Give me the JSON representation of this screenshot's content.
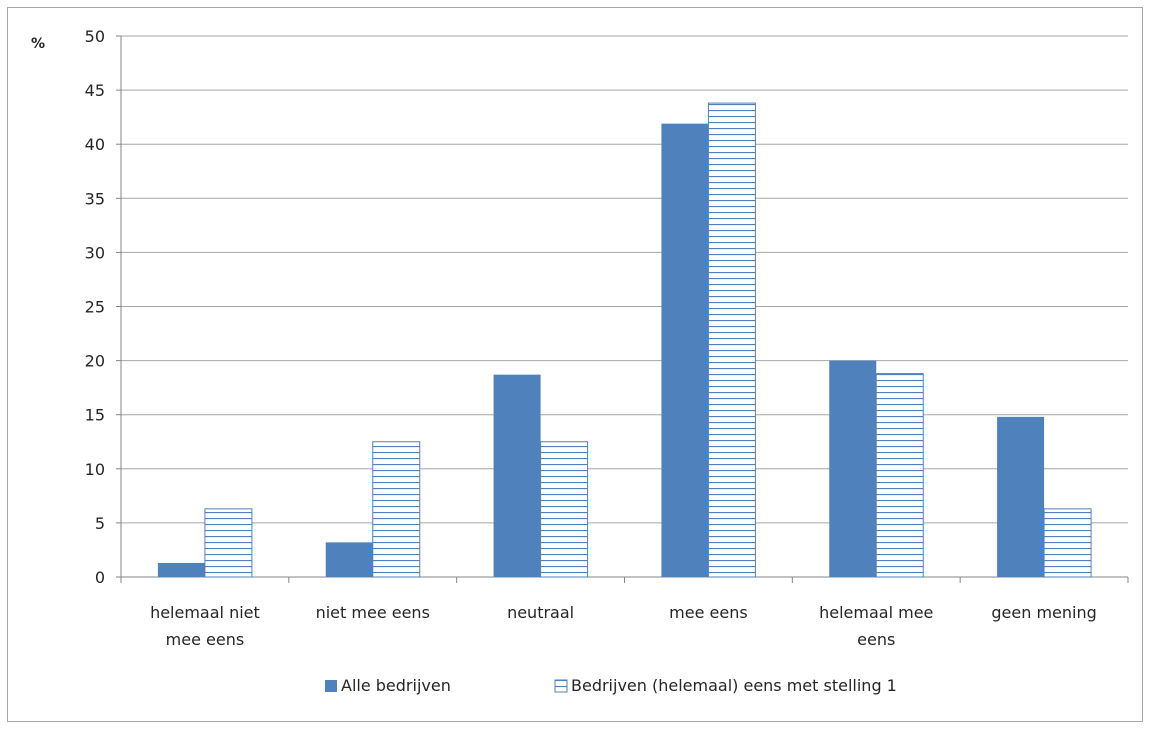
{
  "chart_data": {
    "type": "bar",
    "y_unit_label": "%",
    "categories": [
      [
        "helemaal niet",
        "mee eens"
      ],
      [
        "niet mee eens"
      ],
      [
        "neutraal"
      ],
      [
        "mee eens"
      ],
      [
        "helemaal mee",
        "eens"
      ],
      [
        "geen mening"
      ]
    ],
    "series": [
      {
        "name": "Alle bedrijven",
        "values": [
          1.3,
          3.2,
          18.7,
          41.9,
          20.0,
          14.8
        ],
        "color": "#4f81bd",
        "pattern": "solid"
      },
      {
        "name": "Bedrijven (helemaal) eens met stelling 1",
        "values": [
          6.3,
          12.5,
          12.5,
          43.8,
          18.8,
          6.3
        ],
        "color": "#4f81bd",
        "pattern": "horizontal-stripes"
      }
    ],
    "ylim": [
      0,
      50
    ],
    "y_ticks": [
      0,
      5,
      10,
      15,
      20,
      25,
      30,
      35,
      40,
      45,
      50
    ],
    "grid": true,
    "legend_position": "bottom",
    "gridline_color": "#a6a6a6"
  }
}
